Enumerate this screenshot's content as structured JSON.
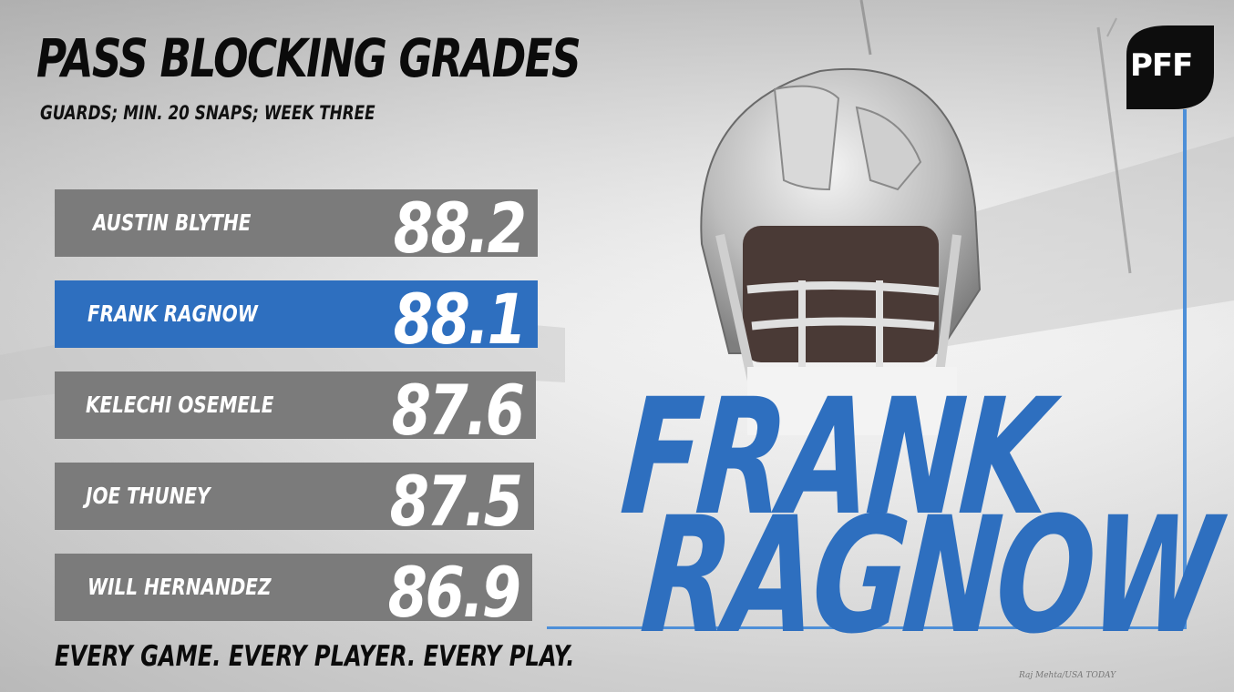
{
  "header": {
    "title": "PASS BLOCKING GRADES",
    "subtitle": "GUARDS; MIN. 20 SNAPS; WEEK THREE"
  },
  "chart_data": {
    "type": "bar",
    "orientation": "horizontal",
    "title": "PASS BLOCKING GRADES",
    "subtitle": "GUARDS; MIN. 20 SNAPS; WEEK THREE",
    "categories": [
      "AUSTIN BLYTHE",
      "FRANK RAGNOW",
      "KELECHI OSEMELE",
      "JOE THUNEY",
      "WILL HERNANDEZ"
    ],
    "values": [
      88.2,
      88.1,
      87.6,
      87.5,
      86.9
    ],
    "value_labels": [
      "88.2",
      "88.1",
      "87.6",
      "87.5",
      "86.9"
    ],
    "highlight_index": 1,
    "colors": {
      "bar": "#7b7b7b",
      "highlight": "#2e6fbf",
      "text": "#ffffff"
    }
  },
  "featured_player": {
    "first_name": "FRANK",
    "last_name": "RAGNOW",
    "color": "#2e6fbf"
  },
  "footer": {
    "tagline": "EVERY GAME. EVERY PLAYER. EVERY PLAY.",
    "photo_credit": "Raj Mehta/USA TODAY"
  },
  "logo": {
    "text": "PFF",
    "icon": "pff-logo-icon"
  }
}
